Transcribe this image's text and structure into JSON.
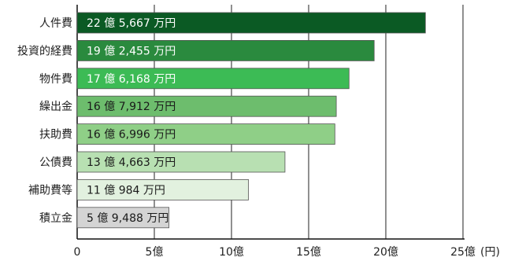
{
  "chart_data": {
    "type": "bar",
    "orientation": "horizontal",
    "categories": [
      "人件費",
      "投資的経費",
      "物件費",
      "繰出金",
      "扶助費",
      "公債費",
      "補助費等",
      "積立金"
    ],
    "values": [
      22.5667,
      19.2455,
      17.6168,
      16.7912,
      16.6996,
      13.4663,
      11.0984,
      5.9488
    ],
    "value_labels": [
      "22 億 5,667 万円",
      "19 億 2,455 万円",
      "17 億 6,168 万円",
      "16 億 7,912 万円",
      "16 億 6,996 万円",
      "13 億 4,663 万円",
      "11 億 984 万円",
      "5 億 9,488 万円"
    ],
    "bar_colors": [
      "#0b5a24",
      "#2a8a3e",
      "#3cbb55",
      "#6dbd6d",
      "#8fcf87",
      "#b8e0b2",
      "#e2f1df",
      "#d4d4d4"
    ],
    "label_colors": [
      "#ffffff",
      "#ffffff",
      "#ffffff",
      "#1a1a1a",
      "#1a1a1a",
      "#1a1a1a",
      "#1a1a1a",
      "#1a1a1a"
    ],
    "xlim": [
      0,
      25
    ],
    "x_ticks": [
      0,
      5,
      10,
      15,
      20,
      25
    ],
    "x_tick_labels": [
      "0",
      "5億",
      "10億",
      "15億",
      "20億",
      "25億"
    ],
    "x_unit": "(円)",
    "grid": true
  }
}
